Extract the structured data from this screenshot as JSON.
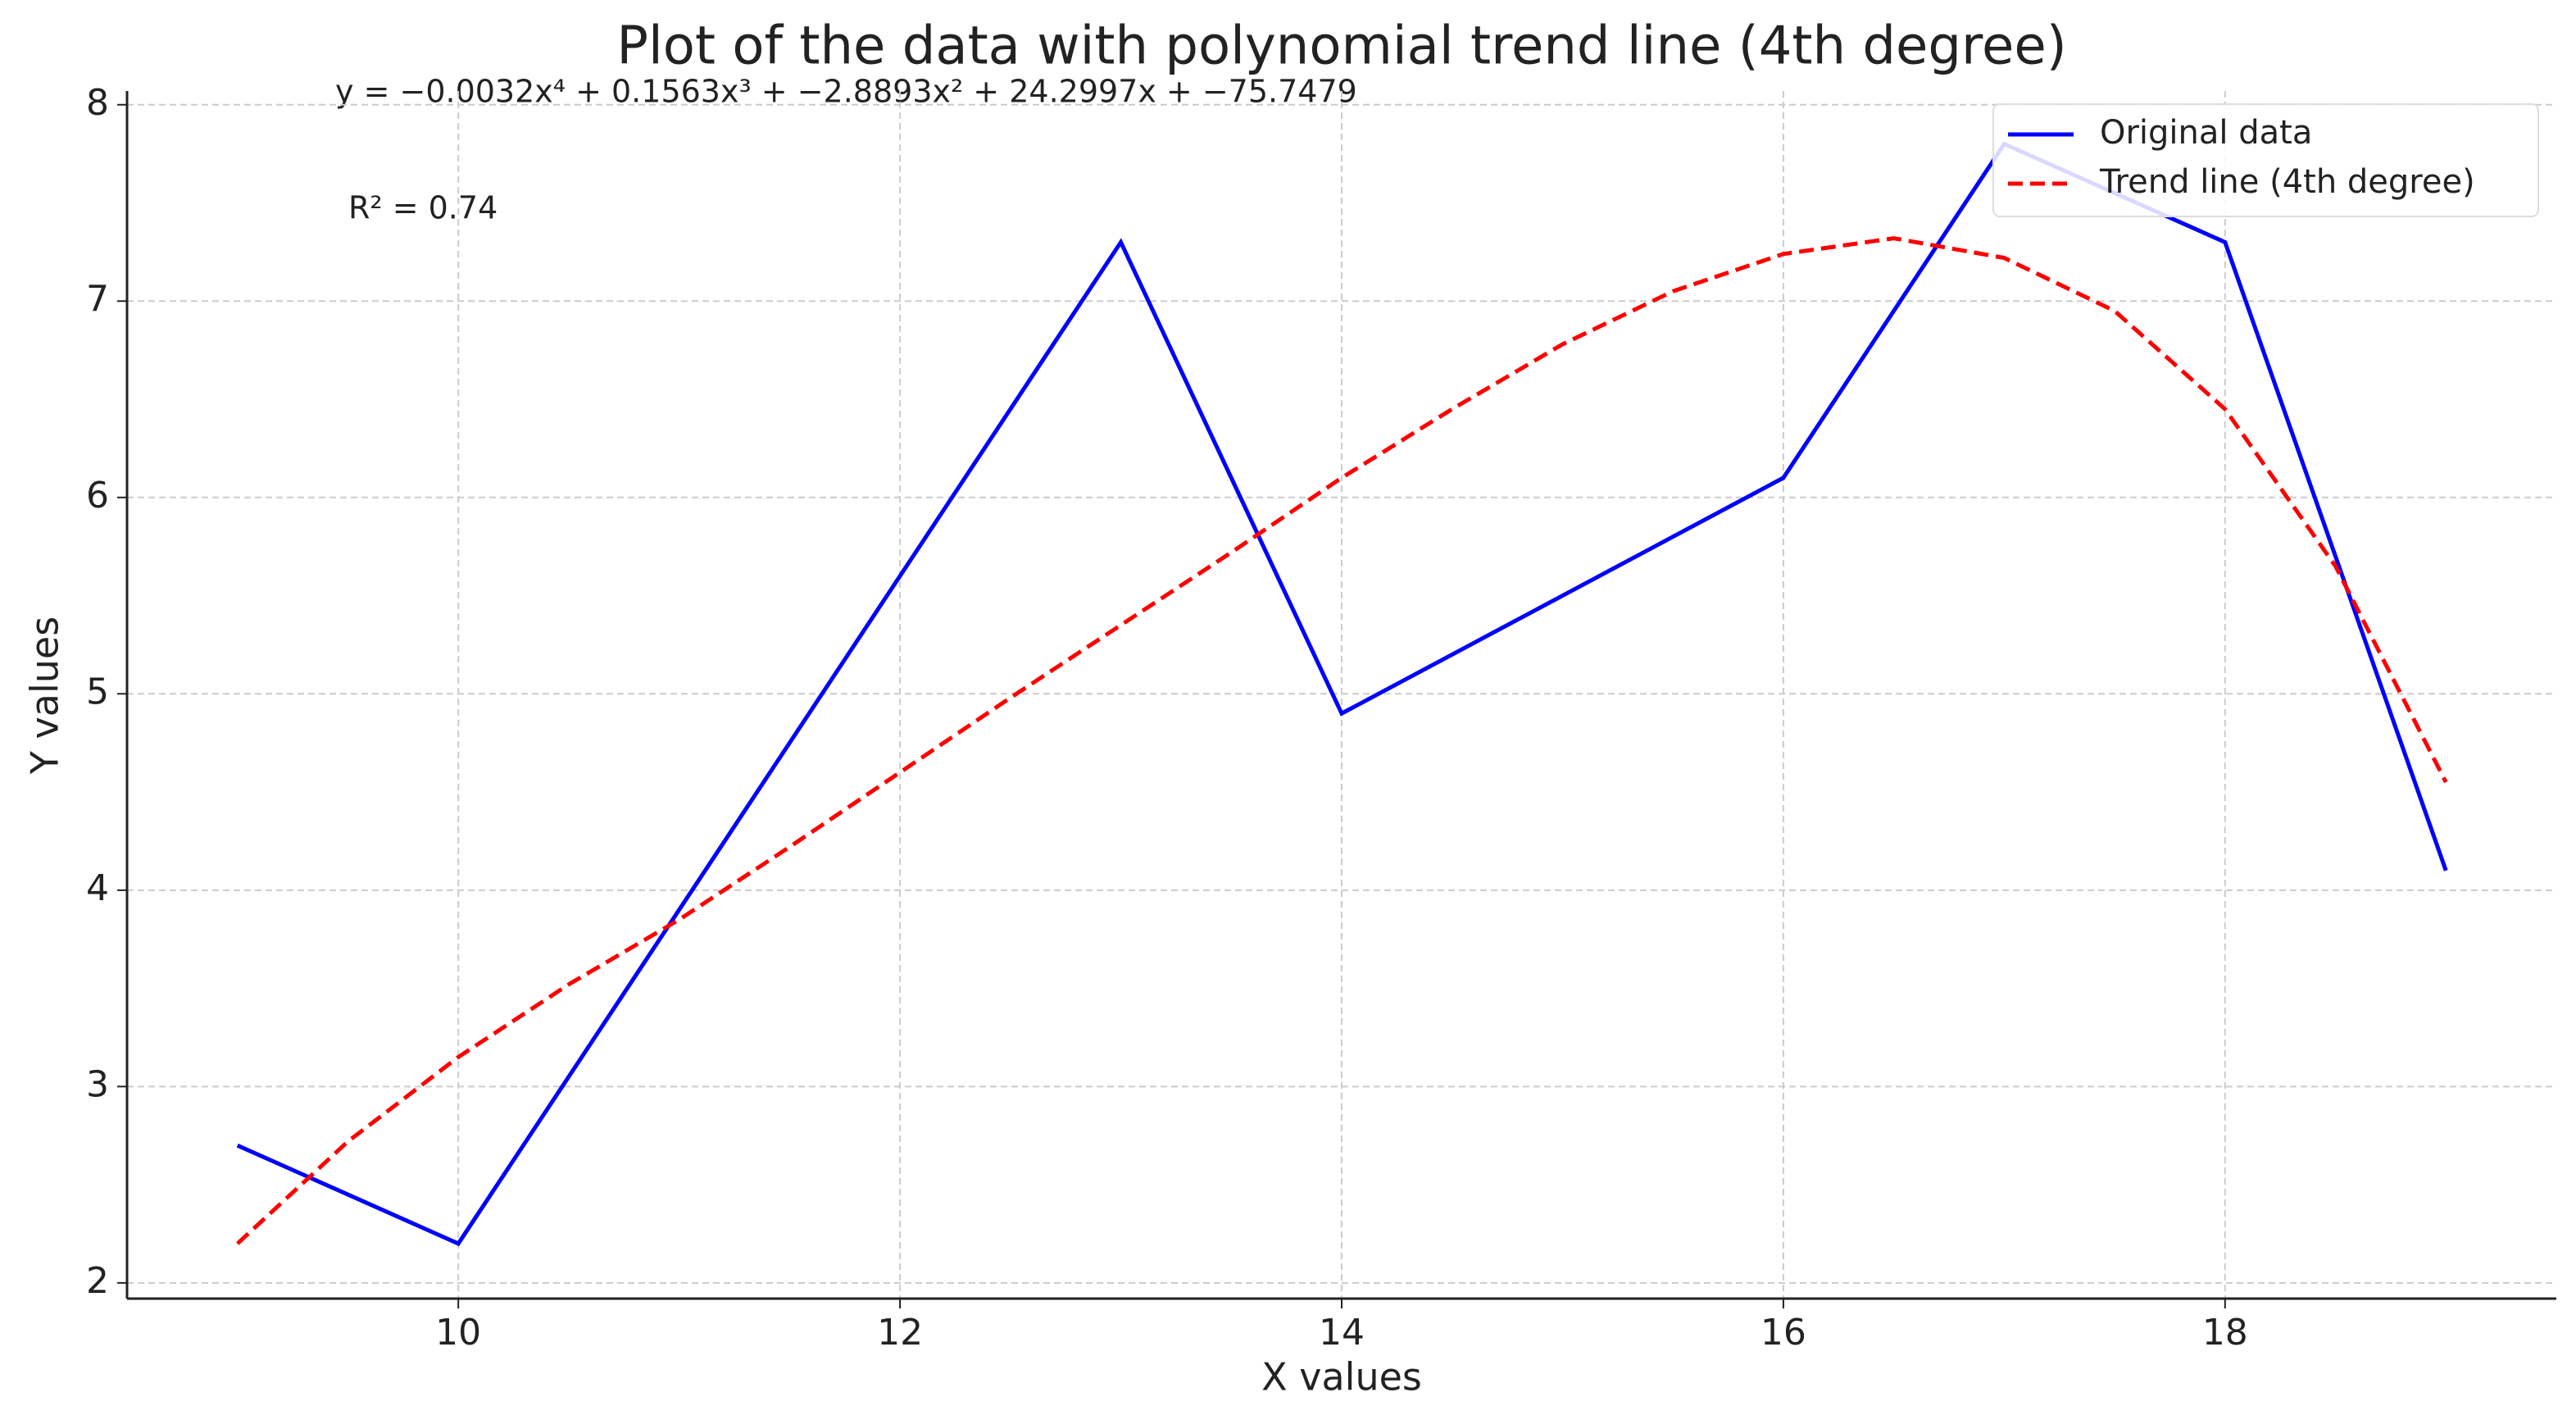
{
  "chart_data": {
    "type": "line",
    "title": "Plot of the data with polynomial trend line (4th degree)",
    "xlabel": "X values",
    "ylabel": "Y values",
    "annotations": [
      "y = −0.0032x⁴ + 0.1563x³ + −2.8893x² + 24.2997x + −75.7479",
      "R² = 0.74"
    ],
    "series": [
      {
        "name": "Original data",
        "color": "#0000ff",
        "style": "solid",
        "x": [
          9,
          10,
          13,
          14,
          16,
          17,
          18,
          19
        ],
        "values": [
          2.7,
          2.2,
          7.3,
          4.9,
          6.1,
          7.8,
          7.3,
          4.1
        ]
      },
      {
        "name": "Trend line (4th degree)",
        "color": "#ff0000",
        "style": "dashed",
        "x": [
          9,
          9.5,
          10,
          10.5,
          11,
          11.5,
          12,
          12.5,
          13,
          13.5,
          14,
          14.5,
          15,
          15.5,
          16,
          16.5,
          17,
          17.5,
          18,
          18.5,
          19
        ],
        "values": [
          2.2,
          2.72,
          3.15,
          3.52,
          3.85,
          4.22,
          4.6,
          4.98,
          5.35,
          5.72,
          6.1,
          6.45,
          6.78,
          7.05,
          7.24,
          7.32,
          7.22,
          6.95,
          6.45,
          5.65,
          4.55
        ]
      }
    ],
    "xlim": [
      8.5,
      19.5
    ],
    "ylim": [
      1.92,
      8.07
    ],
    "xticks": [
      10,
      12,
      14,
      16,
      18
    ],
    "yticks": [
      2,
      3,
      4,
      5,
      6,
      7,
      8
    ],
    "grid": true,
    "legend": "upper right"
  }
}
